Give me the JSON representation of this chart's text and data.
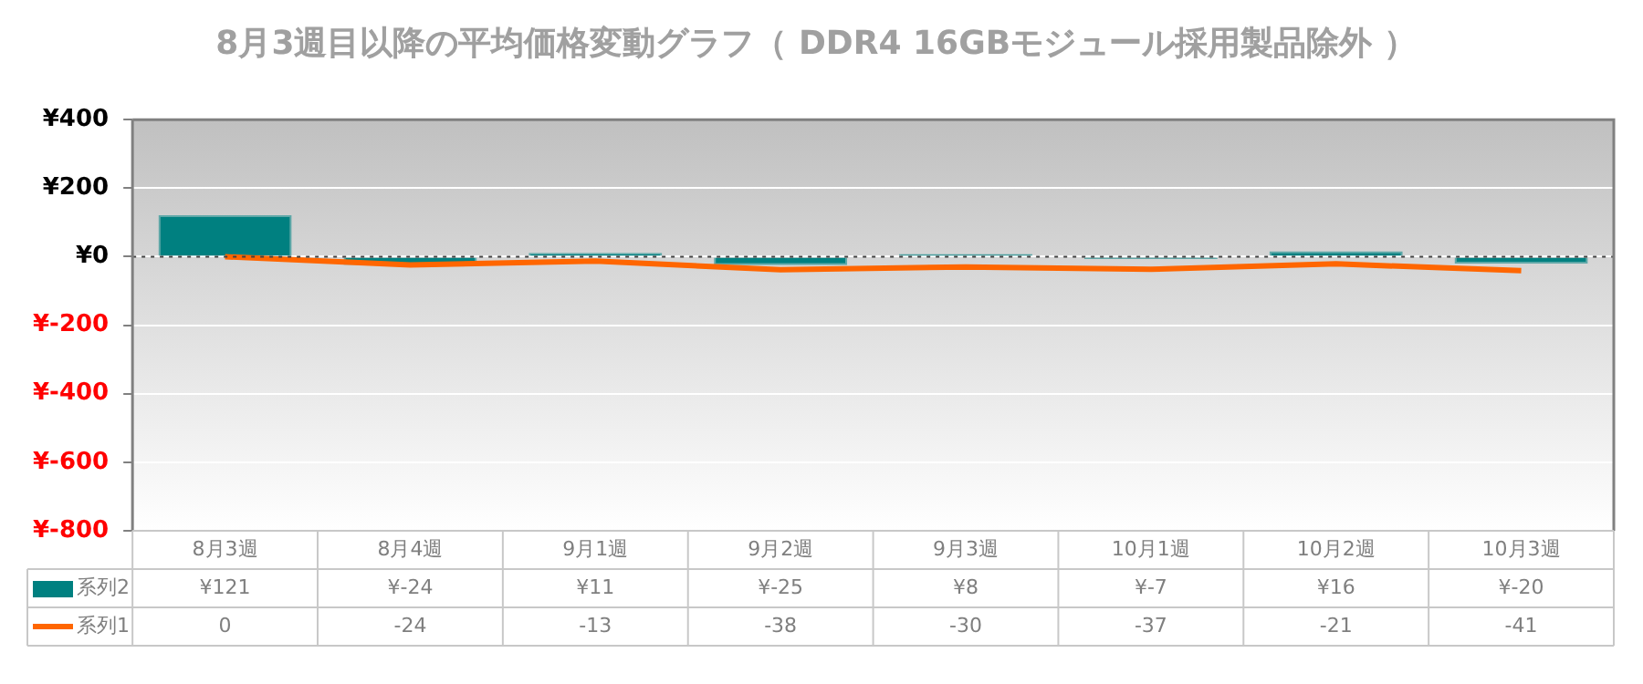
{
  "chart_data": {
    "type": "bar",
    "title": "8月3週目以降の平均価格変動グラフ（ DDR4 16GBモジュール採用製品除外 ）",
    "categories": [
      "8月3週",
      "8月4週",
      "9月1週",
      "9月2週",
      "9月3週",
      "10月1週",
      "10月2週",
      "10月3週"
    ],
    "series": [
      {
        "name": "系列2",
        "color": "#008080",
        "values": [
          121,
          -24,
          11,
          -25,
          8,
          -7,
          16,
          -20
        ],
        "value_labels": [
          "¥121",
          "¥-24",
          "¥11",
          "¥-25",
          "¥8",
          "¥-7",
          "¥16",
          "¥-20"
        ]
      },
      {
        "name": "系列1",
        "type": "line",
        "color": "#ff6600",
        "values": [
          0,
          -24,
          -13,
          -38,
          -30,
          -37,
          -21,
          -41
        ],
        "value_labels": [
          "0",
          "-24",
          "-13",
          "-38",
          "-30",
          "-37",
          "-21",
          "-41"
        ]
      }
    ],
    "ylim": [
      -800,
      400
    ],
    "yticks": [
      {
        "value": 400,
        "label": "¥400"
      },
      {
        "value": 200,
        "label": "¥200"
      },
      {
        "value": 0,
        "label": "¥0"
      },
      {
        "value": -200,
        "label": "¥-200"
      },
      {
        "value": -400,
        "label": "¥-400"
      },
      {
        "value": -600,
        "label": "¥-600"
      },
      {
        "value": -800,
        "label": "¥-800"
      }
    ],
    "ref_lines": [
      {
        "axis": "y",
        "value": 0,
        "color": "#404040",
        "line_style": "dotted"
      }
    ],
    "grid": "y",
    "legend": "bottom",
    "marker": "none"
  }
}
